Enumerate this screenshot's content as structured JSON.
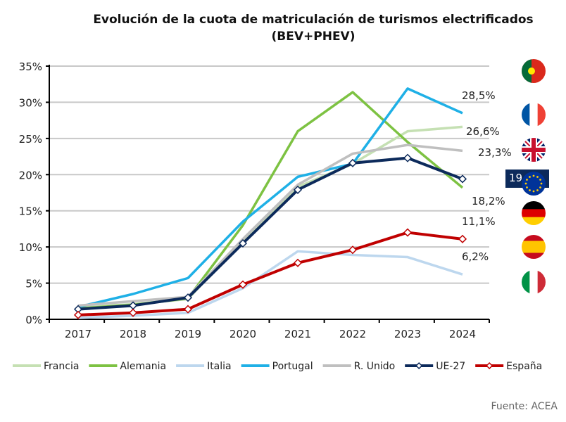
{
  "chart_data": {
    "type": "line",
    "title": "Evolución de la cuota de matriculación de turismos electrificados",
    "subtitle": "(BEV+PHEV)",
    "categories": [
      "2017",
      "2018",
      "2019",
      "2020",
      "2021",
      "2022",
      "2023",
      "2024"
    ],
    "ylim": [
      0,
      35
    ],
    "yticks": [
      "0%",
      "5%",
      "10%",
      "15%",
      "20%",
      "25%",
      "30%",
      "35%"
    ],
    "grid": true,
    "legend": "bottom",
    "series": [
      {
        "name": "Francia",
        "color": "#c5e0b3",
        "markers": false,
        "values": [
          1.6,
          2.1,
          2.8,
          11.0,
          18.3,
          21.5,
          26.0,
          26.6
        ],
        "end_label": "26,6%"
      },
      {
        "name": "Alemania",
        "color": "#7dc242",
        "markers": false,
        "values": [
          1.5,
          2.0,
          2.9,
          13.0,
          26.0,
          31.4,
          24.5,
          18.2
        ],
        "end_label": "18,2%"
      },
      {
        "name": "Italia",
        "color": "#bdd7ee",
        "markers": false,
        "values": [
          0.2,
          0.5,
          0.9,
          4.3,
          9.4,
          8.9,
          8.6,
          6.2
        ],
        "end_label": "6,2%"
      },
      {
        "name": "Portugal",
        "color": "#1fb0e6",
        "markers": false,
        "values": [
          1.7,
          3.5,
          5.7,
          13.5,
          19.7,
          21.5,
          31.9,
          28.5
        ],
        "end_label": "28,5%"
      },
      {
        "name": "R. Unido",
        "color": "#bfbfbf",
        "markers": false,
        "values": [
          1.9,
          2.5,
          3.1,
          11.1,
          18.6,
          22.9,
          24.1,
          23.3
        ],
        "end_label": "23,3%"
      },
      {
        "name": "UE-27",
        "color": "#0c2a5b",
        "markers": true,
        "values": [
          1.4,
          1.9,
          3.0,
          10.5,
          17.9,
          21.6,
          22.3,
          19.4
        ],
        "end_label": "19,4%",
        "highlight": true
      },
      {
        "name": "España",
        "color": "#c00000",
        "markers": true,
        "values": [
          0.6,
          0.9,
          1.4,
          4.8,
          7.8,
          9.6,
          12.0,
          11.1
        ],
        "end_label": "11,1%"
      }
    ],
    "flags": [
      "Portugal",
      "Francia",
      "R. Unido",
      "UE-27",
      "Alemania",
      "España",
      "Italia"
    ]
  },
  "source": "Fuente: ACEA"
}
